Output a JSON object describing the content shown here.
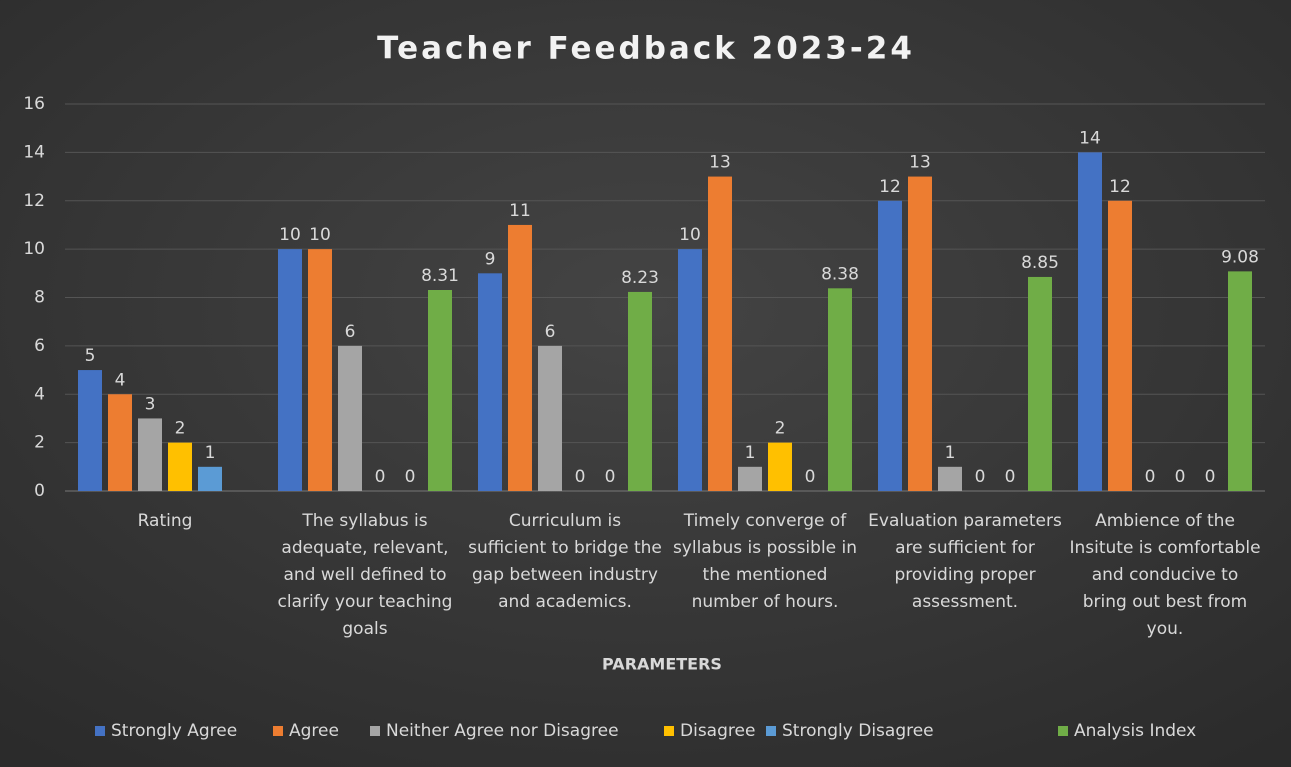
{
  "chart_data": {
    "type": "bar",
    "title": "Teacher Feedback 2023-24",
    "x_label": "PARAMETERS",
    "categories": [
      "Rating",
      "The syllabus is adequate, relevant, and well defined to clarify your teaching goals",
      "Curriculum is sufficient to bridge the gap between industry and academics.",
      "Timely converge of syllabus is possible in the mentioned number of hours.",
      "Evaluation parameters are sufficient for providing proper assessment.",
      "Ambience of the Insitute is comfortable and conducive to bring out best from you."
    ],
    "series": [
      {
        "name": "Strongly Agree",
        "color": "#4472c4",
        "values": [
          5,
          10,
          9,
          10,
          12,
          14
        ]
      },
      {
        "name": "Agree",
        "color": "#ed7d31",
        "values": [
          4,
          10,
          11,
          13,
          13,
          12
        ]
      },
      {
        "name": "Neither Agree nor Disagree",
        "color": "#a5a5a5",
        "values": [
          3,
          6,
          6,
          1,
          1,
          0
        ]
      },
      {
        "name": "Disagree",
        "color": "#ffc000",
        "values": [
          2,
          0,
          0,
          2,
          0,
          0
        ]
      },
      {
        "name": "Strongly Disagree",
        "color": "#5b9bd5",
        "values": [
          1,
          0,
          0,
          0,
          0,
          0
        ]
      },
      {
        "name": "Analysis Index",
        "color": "#70ad47",
        "values": [
          null,
          8.31,
          8.23,
          8.38,
          8.85,
          9.08
        ]
      }
    ],
    "ylim": [
      0,
      16
    ],
    "yticks": [
      0,
      2,
      4,
      6,
      8,
      10,
      12,
      14,
      16
    ],
    "grid": true,
    "legend": "bottom"
  }
}
